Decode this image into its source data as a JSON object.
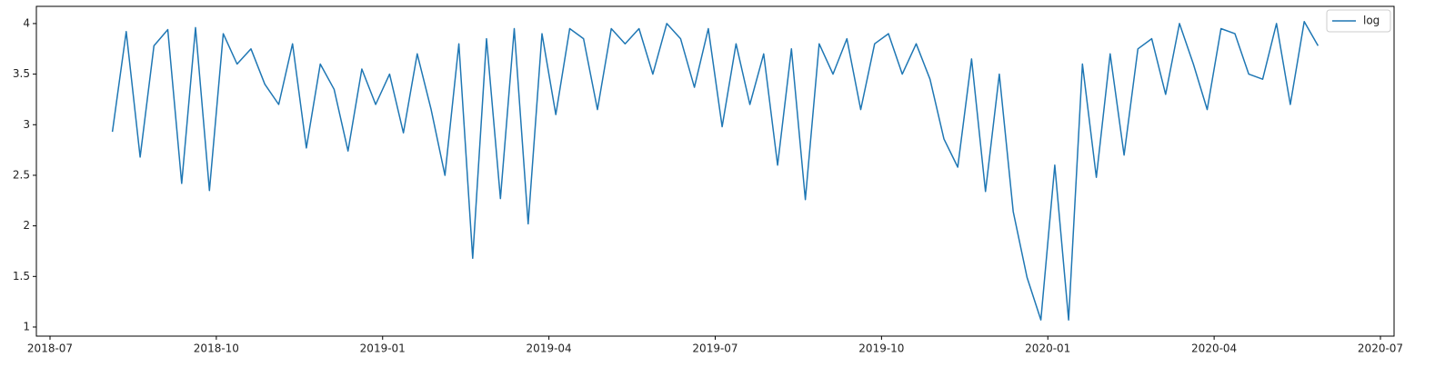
{
  "chart_data": {
    "type": "line",
    "x": [
      "2018-08",
      "2018-08",
      "2018-08",
      "2018-08",
      "2018-09",
      "2018-09",
      "2018-09",
      "2018-09",
      "2018-10",
      "2018-10",
      "2018-10",
      "2018-10",
      "2018-11",
      "2018-11",
      "2018-11",
      "2018-11",
      "2018-12",
      "2018-12",
      "2018-12",
      "2018-12",
      "2019-01",
      "2019-01",
      "2019-01",
      "2019-01",
      "2019-02",
      "2019-02",
      "2019-02",
      "2019-02",
      "2019-03",
      "2019-03",
      "2019-03",
      "2019-03",
      "2019-04",
      "2019-04",
      "2019-04",
      "2019-04",
      "2019-05",
      "2019-05",
      "2019-05",
      "2019-05",
      "2019-06",
      "2019-06",
      "2019-06",
      "2019-06",
      "2019-07",
      "2019-07",
      "2019-07",
      "2019-07",
      "2019-08",
      "2019-08",
      "2019-08",
      "2019-08",
      "2019-09",
      "2019-09",
      "2019-09",
      "2019-09",
      "2019-10",
      "2019-10",
      "2019-10",
      "2019-10",
      "2019-11",
      "2019-11",
      "2019-11",
      "2019-11",
      "2019-12",
      "2019-12",
      "2019-12",
      "2019-12",
      "2020-01",
      "2020-01",
      "2020-01",
      "2020-01",
      "2020-02",
      "2020-02",
      "2020-02",
      "2020-02",
      "2020-03",
      "2020-03",
      "2020-03",
      "2020-03",
      "2020-04",
      "2020-04",
      "2020-04",
      "2020-04",
      "2020-05",
      "2020-05",
      "2020-05",
      "2020-05"
    ],
    "series": [
      {
        "name": "log",
        "color": "#1f77b4",
        "values": [
          2.93,
          3.92,
          2.68,
          3.78,
          3.94,
          2.42,
          3.96,
          2.35,
          3.9,
          3.6,
          3.75,
          3.4,
          3.2,
          3.8,
          2.77,
          3.6,
          3.35,
          2.74,
          3.55,
          3.2,
          3.5,
          2.92,
          3.7,
          3.15,
          2.5,
          3.8,
          1.68,
          3.85,
          2.27,
          3.95,
          2.02,
          3.9,
          3.1,
          3.95,
          3.85,
          3.15,
          3.95,
          3.8,
          3.95,
          3.5,
          4.0,
          3.85,
          3.37,
          3.95,
          2.98,
          3.8,
          3.2,
          3.7,
          2.6,
          3.75,
          2.26,
          3.8,
          3.5,
          3.85,
          3.15,
          3.8,
          3.9,
          3.5,
          3.8,
          3.45,
          2.86,
          2.58,
          3.65,
          2.34,
          3.5,
          2.14,
          1.49,
          1.07,
          2.6,
          1.07,
          3.6,
          2.48,
          3.7,
          2.7,
          3.75,
          3.85,
          3.3,
          4.0,
          3.6,
          3.15,
          3.95,
          3.9,
          3.5,
          3.45,
          4.0,
          3.2,
          4.02,
          3.78
        ]
      }
    ],
    "xlim": [
      "2018-07",
      "2020-07"
    ],
    "xticks": [
      "2018-07",
      "2018-10",
      "2019-01",
      "2019-04",
      "2019-07",
      "2019-10",
      "2020-01",
      "2020-04",
      "2020-07"
    ],
    "ylim": [
      0.91,
      4.17
    ],
    "yticks": [
      1.0,
      1.5,
      2.0,
      2.5,
      3.0,
      3.5,
      4.0
    ],
    "legend": "upper right"
  }
}
